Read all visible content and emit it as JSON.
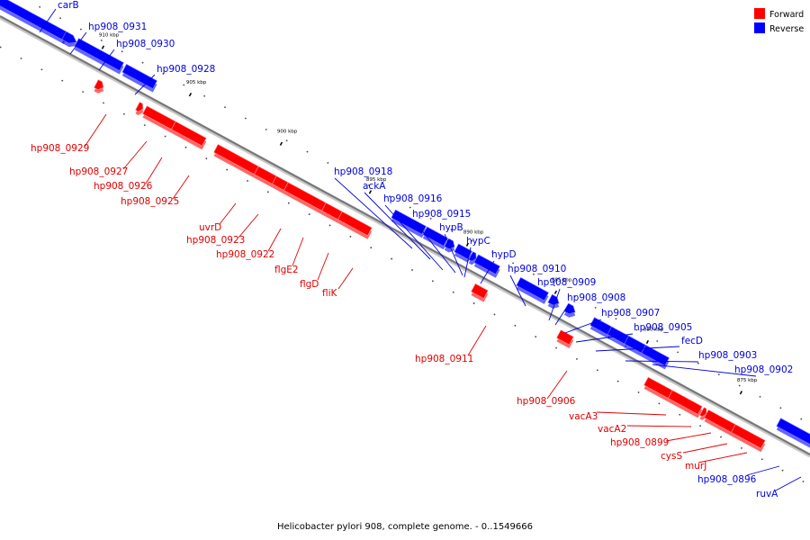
{
  "caption": "Helicobacter pylori 908, complete genome. - 0..1549666",
  "legend": [
    {
      "label": "Forward",
      "color": "#ff0000"
    },
    {
      "label": "Reverse",
      "color": "#0000ff"
    }
  ],
  "colors": {
    "forward": "#ff0000",
    "reverse": "#0000ff",
    "forward_line": "#e00000",
    "reverse_line": "#0000dd"
  },
  "scale_marks": [
    "910 kbp",
    "905 kbp",
    "900 kbp",
    "895 kbp",
    "890 kbp",
    "885 kbp",
    "880 kbp",
    "875 kbp"
  ],
  "genes": [
    {
      "label": "carB",
      "strand": "reverse"
    },
    {
      "label": "hp908_0931",
      "strand": "reverse"
    },
    {
      "label": "hp908_0930",
      "strand": "reverse"
    },
    {
      "label": "hp908_0928",
      "strand": "reverse"
    },
    {
      "label": "hp908_0929",
      "strand": "forward"
    },
    {
      "label": "hp908_0927",
      "strand": "forward"
    },
    {
      "label": "hp908_0926",
      "strand": "forward"
    },
    {
      "label": "hp908_0925",
      "strand": "forward"
    },
    {
      "label": "uvrD",
      "strand": "forward"
    },
    {
      "label": "hp908_0923",
      "strand": "forward"
    },
    {
      "label": "hp908_0922",
      "strand": "forward"
    },
    {
      "label": "flgE2",
      "strand": "forward"
    },
    {
      "label": "flgD",
      "strand": "forward"
    },
    {
      "label": "fliK",
      "strand": "forward"
    },
    {
      "label": "hp908_0918",
      "strand": "reverse"
    },
    {
      "label": "ackA",
      "strand": "reverse"
    },
    {
      "label": "hp908_0916",
      "strand": "reverse"
    },
    {
      "label": "hp908_0915",
      "strand": "reverse"
    },
    {
      "label": "hypB",
      "strand": "reverse"
    },
    {
      "label": "hypC",
      "strand": "reverse"
    },
    {
      "label": "hypD",
      "strand": "reverse"
    },
    {
      "label": "hp908_0910",
      "strand": "reverse"
    },
    {
      "label": "hp908_0909",
      "strand": "reverse"
    },
    {
      "label": "hp908_0908",
      "strand": "reverse"
    },
    {
      "label": "hp908_0907",
      "strand": "reverse"
    },
    {
      "label": "hp908_0905",
      "strand": "reverse"
    },
    {
      "label": "fecD",
      "strand": "reverse"
    },
    {
      "label": "hp908_0903",
      "strand": "reverse"
    },
    {
      "label": "hp908_0902",
      "strand": "reverse"
    },
    {
      "label": "hp908_0911",
      "strand": "forward"
    },
    {
      "label": "hp908_0906",
      "strand": "forward"
    },
    {
      "label": "vacA3",
      "strand": "forward"
    },
    {
      "label": "vacA2",
      "strand": "forward"
    },
    {
      "label": "hp908_0899",
      "strand": "forward"
    },
    {
      "label": "cysS",
      "strand": "forward"
    },
    {
      "label": "murJ",
      "strand": "forward"
    },
    {
      "label": "hp908_0896",
      "strand": "reverse"
    },
    {
      "label": "ruvA",
      "strand": "reverse"
    }
  ]
}
